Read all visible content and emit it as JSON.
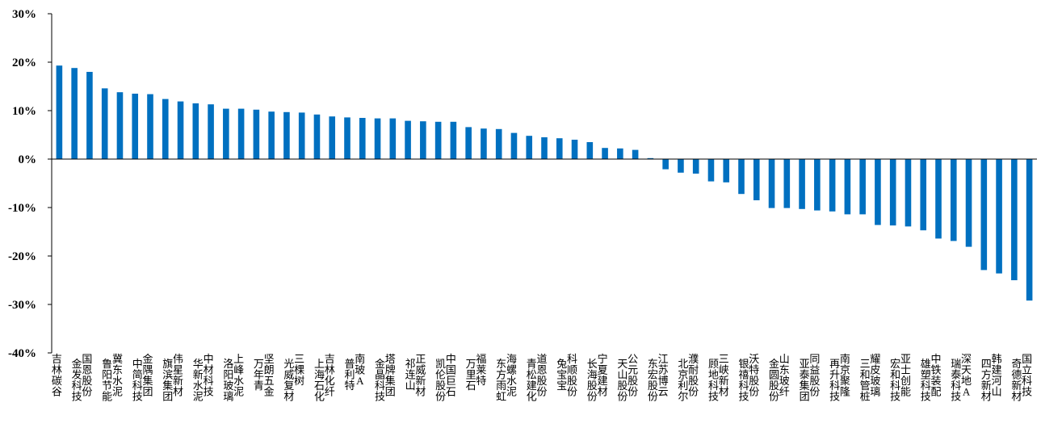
{
  "chart_data": {
    "type": "bar",
    "title": "",
    "xlabel": "",
    "ylabel": "",
    "ylim": [
      -0.4,
      0.3
    ],
    "yticks": [
      -0.4,
      -0.3,
      -0.2,
      -0.1,
      0,
      0.1,
      0.2,
      0.3
    ],
    "ytick_labels": [
      "-40%",
      "-30%",
      "-20%",
      "-10%",
      "0%",
      "10%",
      "20%",
      "30%"
    ],
    "grid": false,
    "bar_color": "#0070C0",
    "categories": [
      "吉林碳谷",
      "金发科技",
      "国恩股份",
      "鲁阳节能",
      "冀东水泥",
      "中简科技",
      "金隅集团",
      "旗滨集团",
      "伟星新材",
      "华新水泥",
      "中材科技",
      "洛阳玻璃",
      "上峰水泥",
      "万年青",
      "坚朗五金",
      "光威复材",
      "三棵树",
      "上海石化",
      "吉林化纤",
      "普利特",
      "南玻A",
      "金晶科技",
      "塔牌集团",
      "祁连山",
      "正威新材",
      "凯伦股份",
      "中国巨石",
      "万里石",
      "福莱特",
      "东方雨虹",
      "海螺水泥",
      "青松建化",
      "道恩股份",
      "兔宝宝",
      "科顺股份",
      "长海股份",
      "宁夏建材",
      "天山股份",
      "公元股份",
      "东宏股份",
      "江苏博云",
      "北京利尔",
      "濮耐股份",
      "顾地科技",
      "三峡新材",
      "银禧科技",
      "沃特股份",
      "金圆股份",
      "山东玻纤",
      "亚泰集团",
      "同益股份",
      "再升科技",
      "南京聚隆",
      "三和管桩",
      "耀皮玻璃",
      "宏和科技",
      "亚士创能",
      "雄塑科技",
      "中铁装配",
      "瑞泰科技",
      "深天地A",
      "四方新材",
      "韩建河山",
      "奇德新材",
      "国立科技"
    ],
    "values": [
      0.193,
      0.188,
      0.18,
      0.146,
      0.138,
      0.135,
      0.134,
      0.124,
      0.119,
      0.115,
      0.113,
      0.104,
      0.104,
      0.102,
      0.098,
      0.097,
      0.096,
      0.092,
      0.088,
      0.086,
      0.085,
      0.084,
      0.084,
      0.079,
      0.078,
      0.077,
      0.077,
      0.066,
      0.063,
      0.062,
      0.054,
      0.048,
      0.045,
      0.043,
      0.04,
      0.035,
      0.023,
      0.022,
      0.019,
      0.002,
      -0.021,
      -0.028,
      -0.03,
      -0.046,
      -0.048,
      -0.072,
      -0.085,
      -0.101,
      -0.101,
      -0.103,
      -0.106,
      -0.108,
      -0.114,
      -0.114,
      -0.136,
      -0.137,
      -0.139,
      -0.147,
      -0.164,
      -0.169,
      -0.181,
      -0.229,
      -0.236,
      -0.25,
      -0.292
    ]
  }
}
